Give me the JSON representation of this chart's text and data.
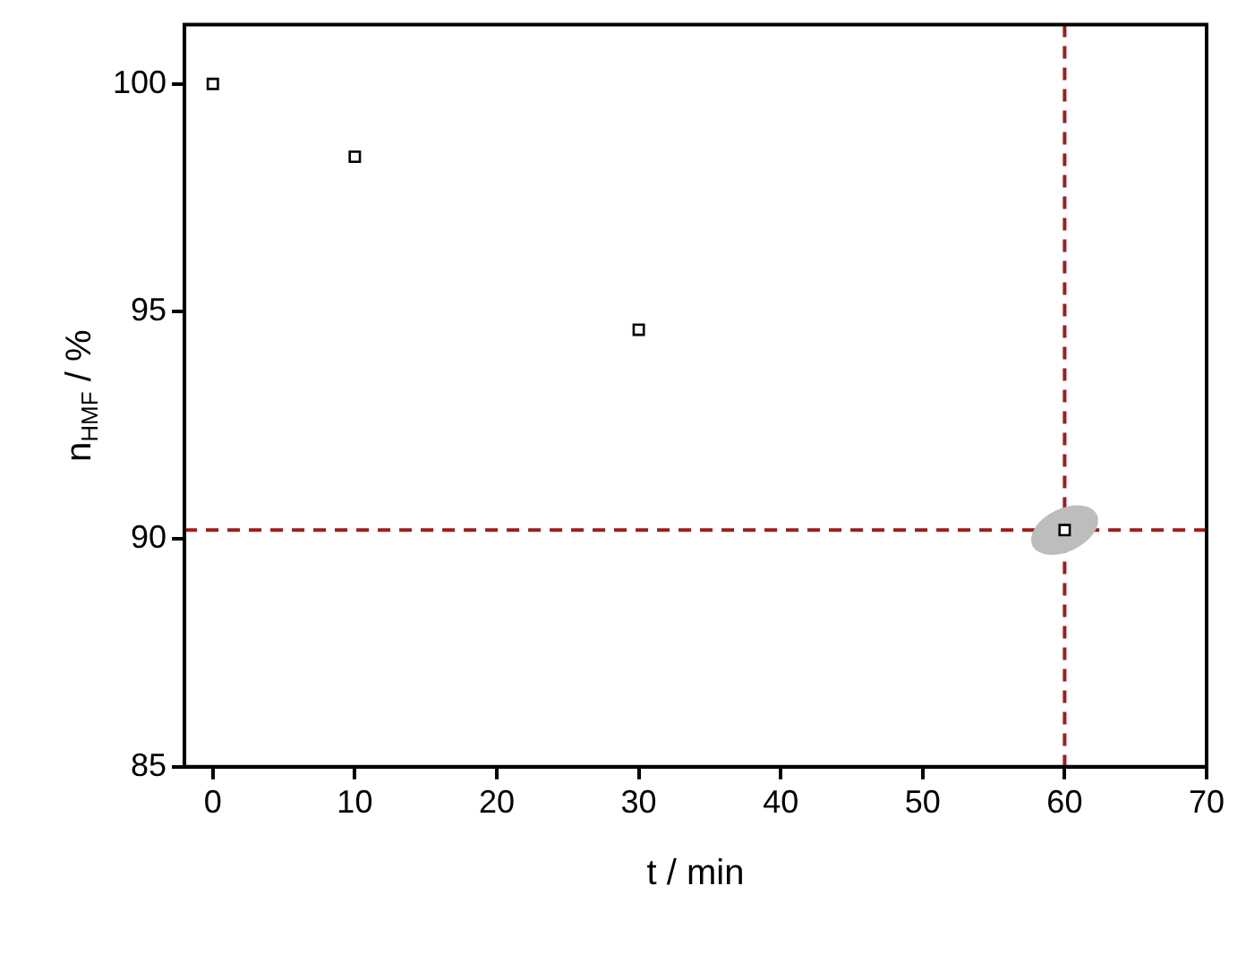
{
  "chart_data": {
    "type": "scatter",
    "xlabel": "t / min",
    "ylabel": "n$_{HMF}$ / %",
    "x": [
      0,
      10,
      30,
      60
    ],
    "series": [
      {
        "color": "#000000",
        "values": [
          100,
          98.4,
          94.6,
          90.2
        ]
      }
    ],
    "xlim": [
      -2,
      70
    ],
    "xticks": [
      0,
      10,
      20,
      30,
      40,
      50,
      60,
      70
    ],
    "ylim": [
      85,
      101.3
    ],
    "yticks": [
      85,
      90,
      95,
      100
    ],
    "grid": false,
    "legend": false,
    "marker": "square",
    "ref_lines": [
      {
        "axis": "y",
        "value": 90.2,
        "color": "#a01c1c",
        "line_style": "dashed"
      },
      {
        "axis": "x",
        "value": 60,
        "color": "#a01c1c",
        "line_style": "dashed"
      }
    ]
  }
}
